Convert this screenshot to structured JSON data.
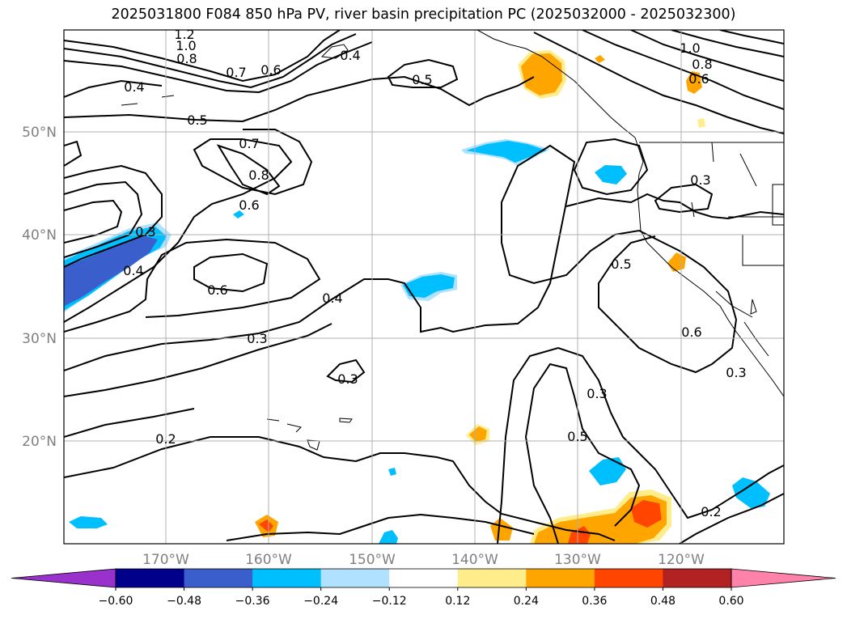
{
  "title": "2025031800 F084 850 hPa PV, river basin precipitation PC (2025032000 - 2025032300)",
  "map": {
    "lat_labels": [
      "50°N",
      "40°N",
      "30°N",
      "20°N"
    ],
    "lon_labels": [
      "170°W",
      "160°W",
      "150°W",
      "140°W",
      "130°W",
      "120°W"
    ],
    "contour_labels": [
      "1.2",
      "1.0",
      "0.8",
      "0.7",
      "0.6",
      "0.4",
      "0.4",
      "0.5",
      "1.0",
      "0.8",
      "0.6",
      "0.5",
      "0.7",
      "0.8",
      "0.6",
      "0.3",
      "0.3",
      "0.4",
      "0.6",
      "0.4",
      "0.3",
      "0.3",
      "0.5",
      "0.6",
      "0.3",
      "0.3",
      "0.2",
      "0.5",
      "0.2"
    ],
    "colors": {
      "land_outline": "#000000",
      "grid": "#b0b0b0",
      "contour": "#000000"
    }
  },
  "colorbar": {
    "ticks": [
      "−0.60",
      "−0.48",
      "−0.36",
      "−0.24",
      "−0.12",
      "0.12",
      "0.24",
      "0.36",
      "0.48",
      "0.60"
    ],
    "colors": [
      "#9932cc",
      "#00008b",
      "#3a5fcd",
      "#00bfff",
      "#b0e2ff",
      "#ffffff",
      "#ffec8b",
      "#ffa500",
      "#ff4500",
      "#b22222",
      "#ff82ab"
    ]
  }
}
